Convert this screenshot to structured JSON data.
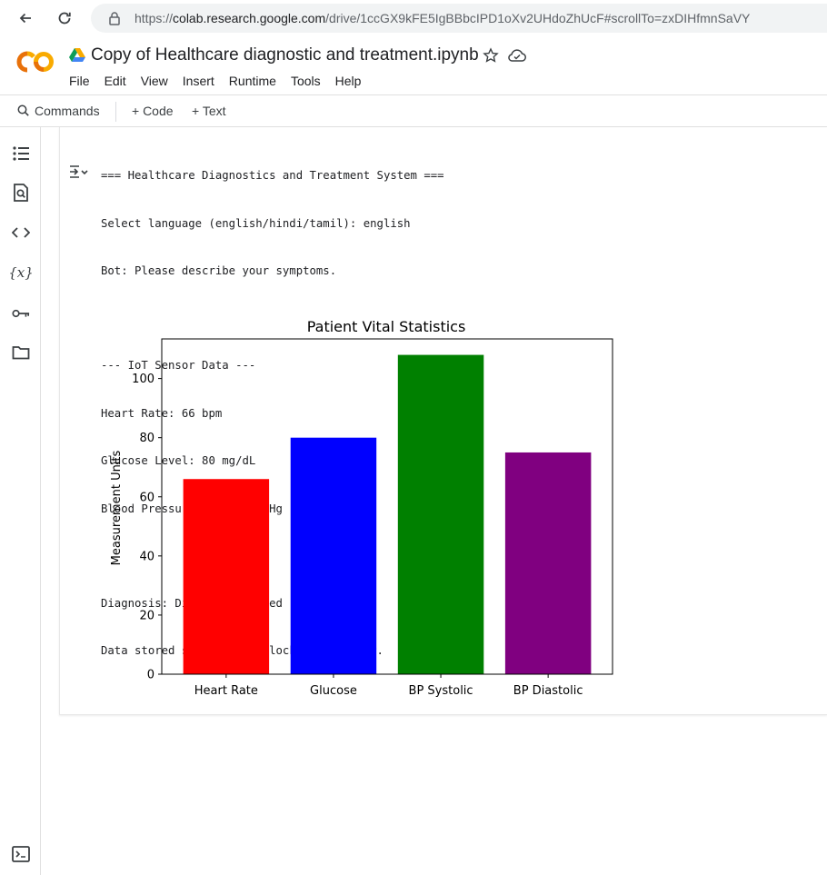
{
  "browser": {
    "url_prefix": "https://",
    "url_host": "colab.research.google.com",
    "url_path": "/drive/1ccGX9kFE5IgBBbcIPD1oXv2UHdoZhUcF#scrollTo=zxDIHfmnSaVY"
  },
  "header": {
    "title": "Copy of Healthcare diagnostic and treatment.ipynb",
    "menu": [
      "File",
      "Edit",
      "View",
      "Insert",
      "Runtime",
      "Tools",
      "Help"
    ]
  },
  "toolbar": {
    "commands": "Commands",
    "code": "+ Code",
    "text": "+ Text"
  },
  "sidebar": {
    "icons": [
      "toc-icon",
      "find-icon",
      "code-snippets-icon",
      "variables-icon",
      "secrets-key-icon",
      "files-folder-icon",
      "terminal-icon"
    ]
  },
  "output": {
    "block1": [
      "=== Healthcare Diagnostics and Treatment System ===",
      "Select language (english/hindi/tamil): english",
      "Bot: Please describe your symptoms."
    ],
    "block2": [
      "--- IoT Sensor Data ---",
      "Heart Rate: 66 bpm",
      "Glucose Level: 80 mg/dL",
      "Blood Pressure: 108/75 mmHg"
    ],
    "block3": [
      "Diagnosis: Disease Detected",
      "Data stored securely in blockchain ledger."
    ]
  },
  "chart_data": {
    "type": "bar",
    "title": "Patient Vital Statistics",
    "xlabel": "",
    "ylabel": "Measurement Units",
    "categories": [
      "Heart Rate",
      "Glucose",
      "BP Systolic",
      "BP Diastolic"
    ],
    "values": [
      66,
      80,
      108,
      75
    ],
    "colors": [
      "#ff0000",
      "#0000ff",
      "#008000",
      "#800080"
    ],
    "ylim": [
      0,
      113.4
    ],
    "yticks": [
      0,
      20,
      40,
      60,
      80,
      100
    ],
    "grid": false,
    "legend": "none"
  }
}
